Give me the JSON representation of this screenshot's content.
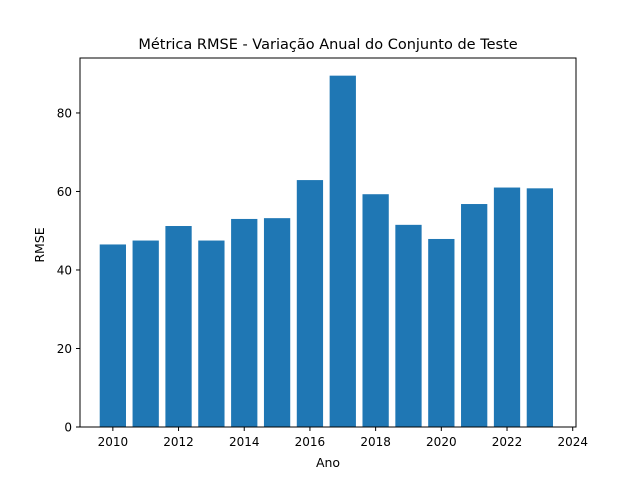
{
  "chart_data": {
    "type": "bar",
    "title": "Métrica RMSE - Variação Anual do Conjunto de Teste",
    "xlabel": "Ano",
    "ylabel": "RMSE",
    "categories": [
      2010,
      2011,
      2012,
      2013,
      2014,
      2015,
      2016,
      2017,
      2018,
      2019,
      2020,
      2021,
      2022,
      2023
    ],
    "values": [
      46.5,
      47.5,
      51.2,
      47.5,
      53.0,
      53.2,
      62.9,
      89.5,
      59.3,
      51.5,
      47.9,
      56.8,
      61.0,
      60.8
    ],
    "xlim": [
      2009.0,
      2024.1
    ],
    "ylim": [
      0,
      94
    ],
    "xticks": [
      2010,
      2012,
      2014,
      2016,
      2018,
      2020,
      2022,
      2024
    ],
    "yticks": [
      0,
      20,
      40,
      60,
      80
    ],
    "bar_color": "#1f77b4",
    "grid": false
  }
}
